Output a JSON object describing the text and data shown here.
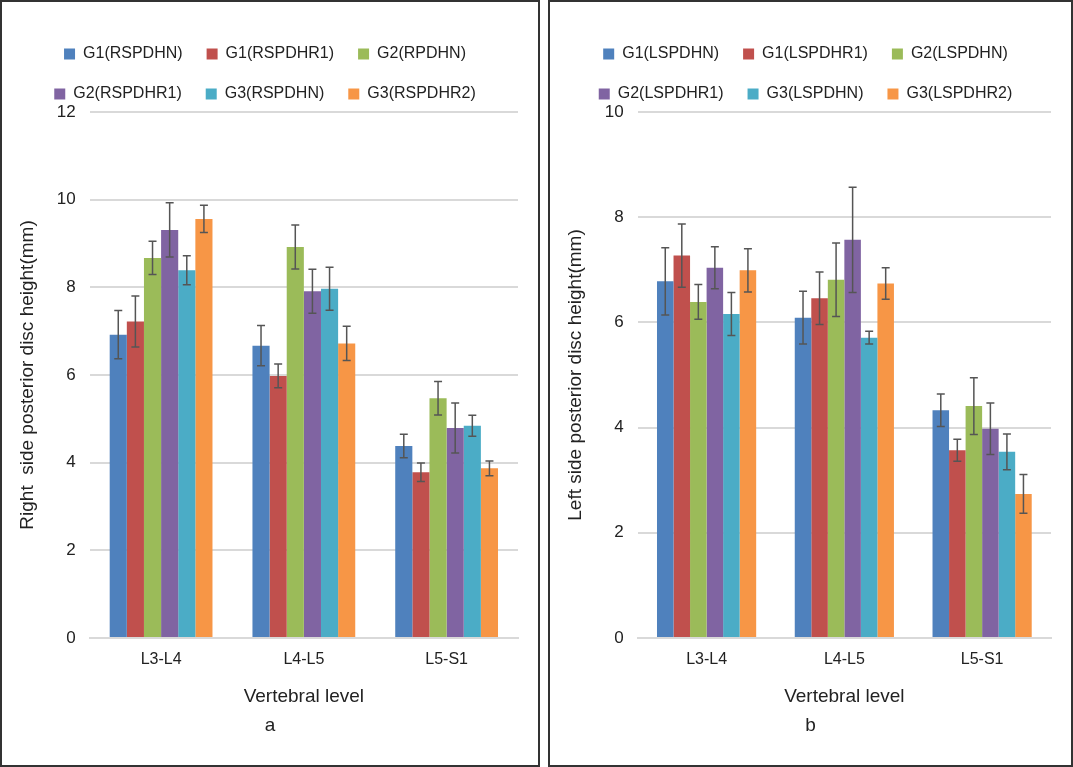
{
  "chart_data": [
    {
      "type": "bar",
      "xlabel": "Vertebral level",
      "ylabel": "Right  side posterior disc height(mm)",
      "annotations": [
        "a"
      ],
      "categories": [
        "L3-L4",
        "L4-L5",
        "L5-S1"
      ],
      "ylim": [
        0,
        12
      ],
      "yticks": [
        0,
        2,
        4,
        6,
        8,
        10,
        12
      ],
      "grid": "y",
      "legend": "top",
      "series": [
        {
          "name": "G1(RSPDHN)",
          "color": "#4f81bd",
          "values": [
            6.92,
            6.67,
            4.38
          ],
          "errors": [
            0.55,
            0.46,
            0.27
          ]
        },
        {
          "name": "G1(RSPDHR1)",
          "color": "#c0504d",
          "values": [
            7.22,
            5.98,
            3.78
          ],
          "errors": [
            0.58,
            0.27,
            0.21
          ]
        },
        {
          "name": "G2(RPDHN)",
          "color": "#9bbb59",
          "values": [
            8.67,
            8.92,
            5.47
          ],
          "errors": [
            0.38,
            0.5,
            0.38
          ]
        },
        {
          "name": "G2(RSPDHR1)",
          "color": "#8064a2",
          "values": [
            9.31,
            7.91,
            4.79
          ],
          "errors": [
            0.62,
            0.5,
            0.57
          ]
        },
        {
          "name": "G3(RSPDHN)",
          "color": "#4bacc6",
          "values": [
            8.39,
            7.97,
            4.84
          ],
          "errors": [
            0.33,
            0.49,
            0.24
          ]
        },
        {
          "name": "G3(RSPDHR2)",
          "color": "#f79646",
          "values": [
            9.56,
            6.72,
            3.87
          ],
          "errors": [
            0.31,
            0.39,
            0.17
          ]
        }
      ]
    },
    {
      "type": "bar",
      "xlabel": "Vertebral level",
      "ylabel": "Left side posterior disc height(mm)",
      "annotations": [
        "b"
      ],
      "categories": [
        "L3-L4",
        "L4-L5",
        "L5-S1"
      ],
      "ylim": [
        0,
        10
      ],
      "yticks": [
        0,
        2,
        4,
        6,
        8,
        10
      ],
      "grid": "y",
      "legend": "top",
      "series": [
        {
          "name": "G1(LSPDHN)",
          "color": "#4f81bd",
          "values": [
            6.78,
            6.09,
            4.33
          ],
          "errors": [
            0.64,
            0.5,
            0.31
          ]
        },
        {
          "name": "G1(LSPDHR1)",
          "color": "#c0504d",
          "values": [
            7.27,
            6.46,
            3.57
          ],
          "errors": [
            0.6,
            0.5,
            0.21
          ]
        },
        {
          "name": "G2(LSPDHN)",
          "color": "#9bbb59",
          "values": [
            6.39,
            6.81,
            4.41
          ],
          "errors": [
            0.33,
            0.7,
            0.54
          ]
        },
        {
          "name": "G2(LSPDHR1)",
          "color": "#8064a2",
          "values": [
            7.04,
            7.57,
            3.98
          ],
          "errors": [
            0.4,
            1.0,
            0.49
          ]
        },
        {
          "name": "G3(LSPDHN)",
          "color": "#4bacc6",
          "values": [
            6.16,
            5.71,
            3.54
          ],
          "errors": [
            0.41,
            0.12,
            0.34
          ]
        },
        {
          "name": "G3(LSPDHR2)",
          "color": "#f79646",
          "values": [
            6.99,
            6.74,
            2.74
          ],
          "errors": [
            0.41,
            0.3,
            0.37
          ]
        }
      ]
    }
  ]
}
